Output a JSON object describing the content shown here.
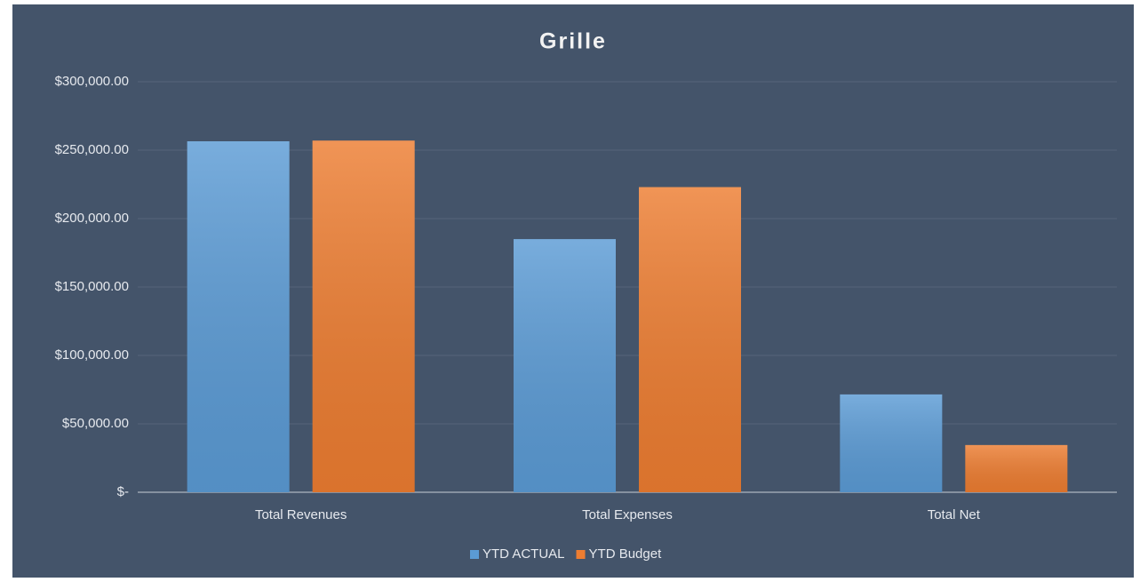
{
  "chart_data": {
    "type": "bar",
    "title": "Grille",
    "categories": [
      "Total Revenues",
      "Total Expenses",
      "Total Net"
    ],
    "series": [
      {
        "name": "YTD ACTUAL",
        "color": "#5b9bd5",
        "values": [
          256500,
          185000,
          71500
        ]
      },
      {
        "name": "YTD Budget",
        "color": "#ed7d31",
        "values": [
          257000,
          223000,
          34500
        ]
      }
    ],
    "ylim": [
      0,
      300000
    ],
    "yticks": [
      {
        "value": 0,
        "label": "$-"
      },
      {
        "value": 50000,
        "label": "$50,000.00"
      },
      {
        "value": 100000,
        "label": "$100,000.00"
      },
      {
        "value": 150000,
        "label": "$150,000.00"
      },
      {
        "value": 200000,
        "label": "$200,000.00"
      },
      {
        "value": 250000,
        "label": "$250,000.00"
      },
      {
        "value": 300000,
        "label": "$300,000.00"
      }
    ],
    "grid": true,
    "legend": "bottom"
  }
}
